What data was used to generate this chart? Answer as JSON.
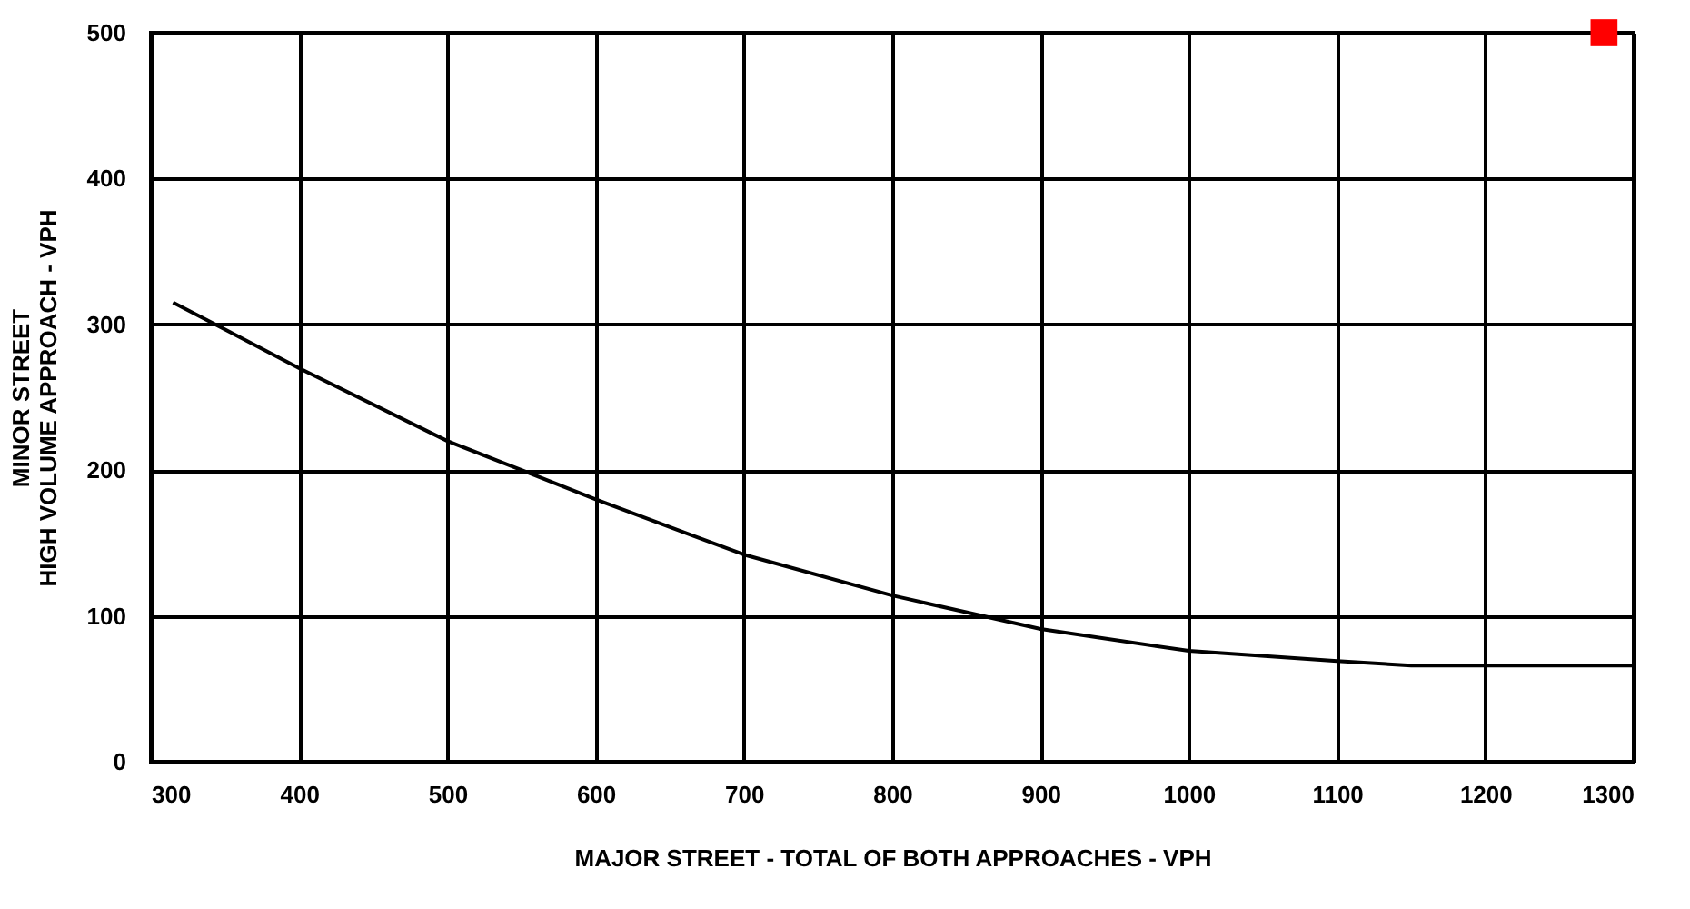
{
  "chart_data": {
    "type": "line",
    "xlabel": "MAJOR STREET - TOTAL OF BOTH APPROACHES - VPH",
    "ylabel": "MINOR STREET\nHIGH VOLUME APPROACH - VPH",
    "xlim": [
      300,
      1300
    ],
    "ylim": [
      0,
      500
    ],
    "xticks": [
      300,
      400,
      500,
      600,
      700,
      800,
      900,
      1000,
      1100,
      1200,
      1300
    ],
    "yticks": [
      0,
      100,
      200,
      300,
      400,
      500
    ],
    "grid": true,
    "series": [
      {
        "color": "#000000",
        "marker": "none",
        "line_style": "solid",
        "x": [
          315,
          400,
          500,
          550,
          600,
          700,
          800,
          900,
          1000,
          1100,
          1150,
          1200,
          1300
        ],
        "values": [
          315,
          270,
          220,
          200,
          180,
          142,
          114,
          91,
          76,
          69,
          66,
          66,
          66
        ]
      },
      {
        "type": "scatter",
        "color": "#ff0000",
        "marker": "square",
        "x": [
          1280
        ],
        "values": [
          500
        ]
      }
    ]
  }
}
